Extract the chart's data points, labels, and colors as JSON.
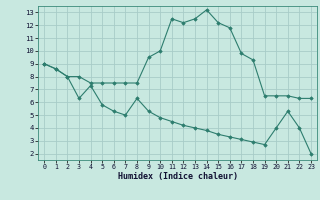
{
  "line1_x": [
    0,
    1,
    2,
    3,
    4,
    5,
    6,
    7,
    8,
    9,
    10,
    11,
    12,
    13,
    14,
    15,
    16,
    17,
    18,
    19,
    20,
    21,
    22,
    23
  ],
  "line1_y": [
    9.0,
    8.6,
    8.0,
    8.0,
    7.5,
    7.5,
    7.5,
    7.5,
    7.5,
    9.5,
    10.0,
    12.5,
    12.2,
    12.5,
    13.2,
    12.2,
    11.8,
    9.8,
    9.3,
    6.5,
    6.5,
    6.5,
    6.3,
    6.3
  ],
  "line2_x": [
    0,
    1,
    2,
    3,
    4,
    5,
    6,
    7,
    8,
    9,
    10,
    11,
    12,
    13,
    14,
    15,
    16,
    17,
    18,
    19,
    20,
    21,
    22,
    23
  ],
  "line2_y": [
    9.0,
    8.6,
    8.0,
    6.3,
    7.3,
    5.8,
    5.3,
    5.0,
    6.3,
    5.3,
    4.8,
    4.5,
    4.2,
    4.0,
    3.8,
    3.5,
    3.3,
    3.1,
    2.9,
    2.7,
    4.0,
    5.3,
    4.0,
    2.0
  ],
  "line_color": "#2d7d6e",
  "bg_color": "#c8e8e0",
  "grid_color": "#a8ccc8",
  "xlabel": "Humidex (Indice chaleur)",
  "xlim": [
    -0.5,
    23.5
  ],
  "ylim": [
    1.5,
    13.5
  ],
  "xticks": [
    0,
    1,
    2,
    3,
    4,
    5,
    6,
    7,
    8,
    9,
    10,
    11,
    12,
    13,
    14,
    15,
    16,
    17,
    18,
    19,
    20,
    21,
    22,
    23
  ],
  "yticks": [
    2,
    3,
    4,
    5,
    6,
    7,
    8,
    9,
    10,
    11,
    12,
    13
  ]
}
